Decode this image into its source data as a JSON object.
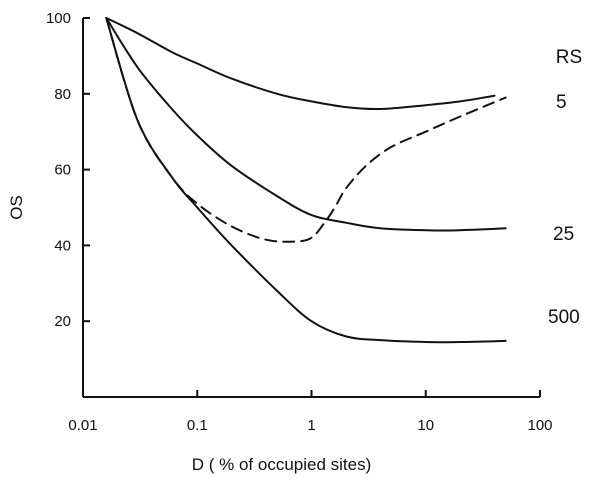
{
  "chart_data": {
    "type": "line",
    "title": "",
    "xlabel": "D ( % of occupied sites)",
    "ylabel": "OS",
    "xscale": "log",
    "xlim": [
      0.01,
      100
    ],
    "ylim": [
      0,
      100
    ],
    "xticks": [
      0.01,
      0.1,
      1,
      10,
      100
    ],
    "xtick_labels": [
      "0.01",
      "0.1",
      "1",
      "10",
      "100"
    ],
    "yticks": [
      20,
      40,
      60,
      80,
      100
    ],
    "ytick_labels": [
      "20",
      "40",
      "60",
      "80",
      "100"
    ],
    "grid": false,
    "legend_title": "RS",
    "legend_placement": "right",
    "series": [
      {
        "name": "5",
        "style": "solid",
        "x": [
          0.016,
          0.03,
          0.06,
          0.1,
          0.2,
          0.5,
          1,
          2,
          4,
          10,
          20,
          40
        ],
        "y": [
          100,
          96,
          91,
          88,
          84,
          80,
          78,
          76.5,
          76,
          77,
          78,
          79.5
        ]
      },
      {
        "name": "25",
        "style": "solid",
        "x": [
          0.016,
          0.03,
          0.06,
          0.1,
          0.2,
          0.5,
          1,
          2,
          4,
          10,
          20,
          50
        ],
        "y": [
          100,
          87,
          76,
          69,
          61,
          53,
          48,
          46,
          44.5,
          44,
          44,
          44.5
        ]
      },
      {
        "name": "500",
        "style": "solid",
        "x": [
          0.016,
          0.03,
          0.06,
          0.1,
          0.2,
          0.5,
          1,
          2,
          4,
          10,
          20,
          50
        ],
        "y": [
          100,
          73,
          58,
          50,
          40,
          28,
          20,
          16,
          15,
          14.5,
          14.5,
          14.8
        ]
      },
      {
        "name": "",
        "style": "dashed",
        "x": [
          0.016,
          0.03,
          0.06,
          0.1,
          0.2,
          0.4,
          0.7,
          1,
          1.3,
          1.6,
          2,
          3,
          5,
          10,
          20,
          50
        ],
        "y": [
          100,
          73,
          58,
          51,
          45,
          41.5,
          41,
          42,
          46,
          50,
          55,
          61,
          66,
          70,
          74,
          79
        ]
      }
    ]
  }
}
